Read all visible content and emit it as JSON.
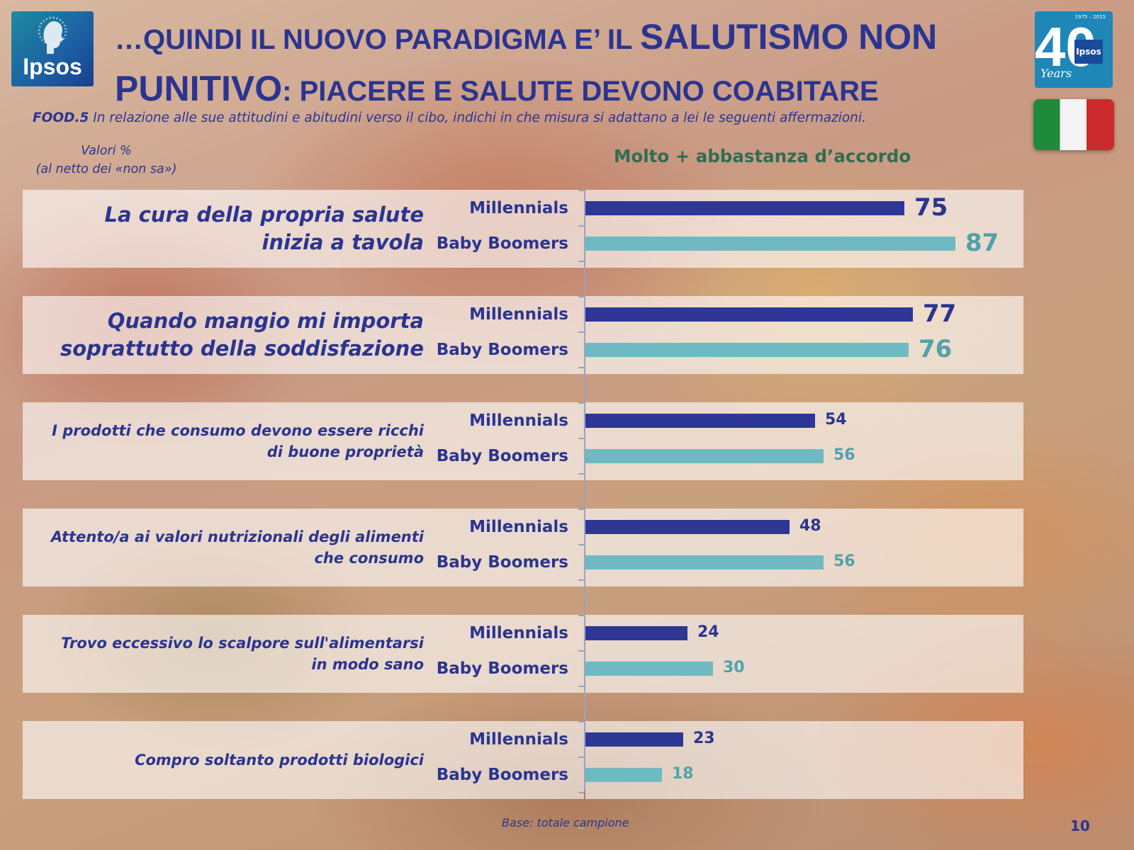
{
  "header": {
    "title_part1": "…QUINDI IL NUOVO PARADIGMA E’ IL ",
    "title_part2": "SALUTISMO NON",
    "title_part3": "PUNITIVO",
    "title_part4": ": PIACERE E SALUTE DEVONO COABITARE",
    "logo_text": "Ipsos",
    "anniversary_range": "1975 – 2015",
    "anniversary_number": "40",
    "anniversary_word": "Years",
    "anniversary_badge": "Ipsos"
  },
  "question": {
    "code": "FOOD.5",
    "text": " In relazione alle sue attitudini e abitudini verso il cibo, indichi in che misura si adattano a lei le seguenti affermazioni."
  },
  "note": {
    "line1": "Valori %",
    "line2": "(al netto dei «non sa»)"
  },
  "footer": {
    "base": "Base: totale campione",
    "page": "10"
  },
  "colors": {
    "millennials": "#2e3795",
    "baby_boomers": "#6fbac2",
    "title": "#2b3590",
    "heading": "#2e6e52"
  },
  "chart_data": {
    "type": "bar",
    "orientation": "horizontal",
    "title": "Molto + abbastanza d’accordo",
    "categories": [
      [
        "La cura della propria salute",
        "inizia a tavola"
      ],
      [
        "Quando mangio mi importa",
        "soprattutto della soddisfazione"
      ],
      [
        "I prodotti che consumo devono  essere ricchi",
        "di buone proprietà"
      ],
      [
        "Attento/a ai valori nutrizionali degli alimenti",
        "che consumo"
      ],
      [
        "Trovo eccessivo lo scalpore sull'alimentarsi",
        "in modo sano"
      ],
      [
        "Compro soltanto prodotti biologici"
      ]
    ],
    "series": [
      {
        "name": "Millennials",
        "values": [
          75,
          77,
          54,
          48,
          24,
          23
        ]
      },
      {
        "name": "Baby Boomers",
        "values": [
          87,
          76,
          56,
          56,
          30,
          18
        ]
      }
    ],
    "xlim": [
      0,
      100
    ],
    "data_labels": true
  }
}
